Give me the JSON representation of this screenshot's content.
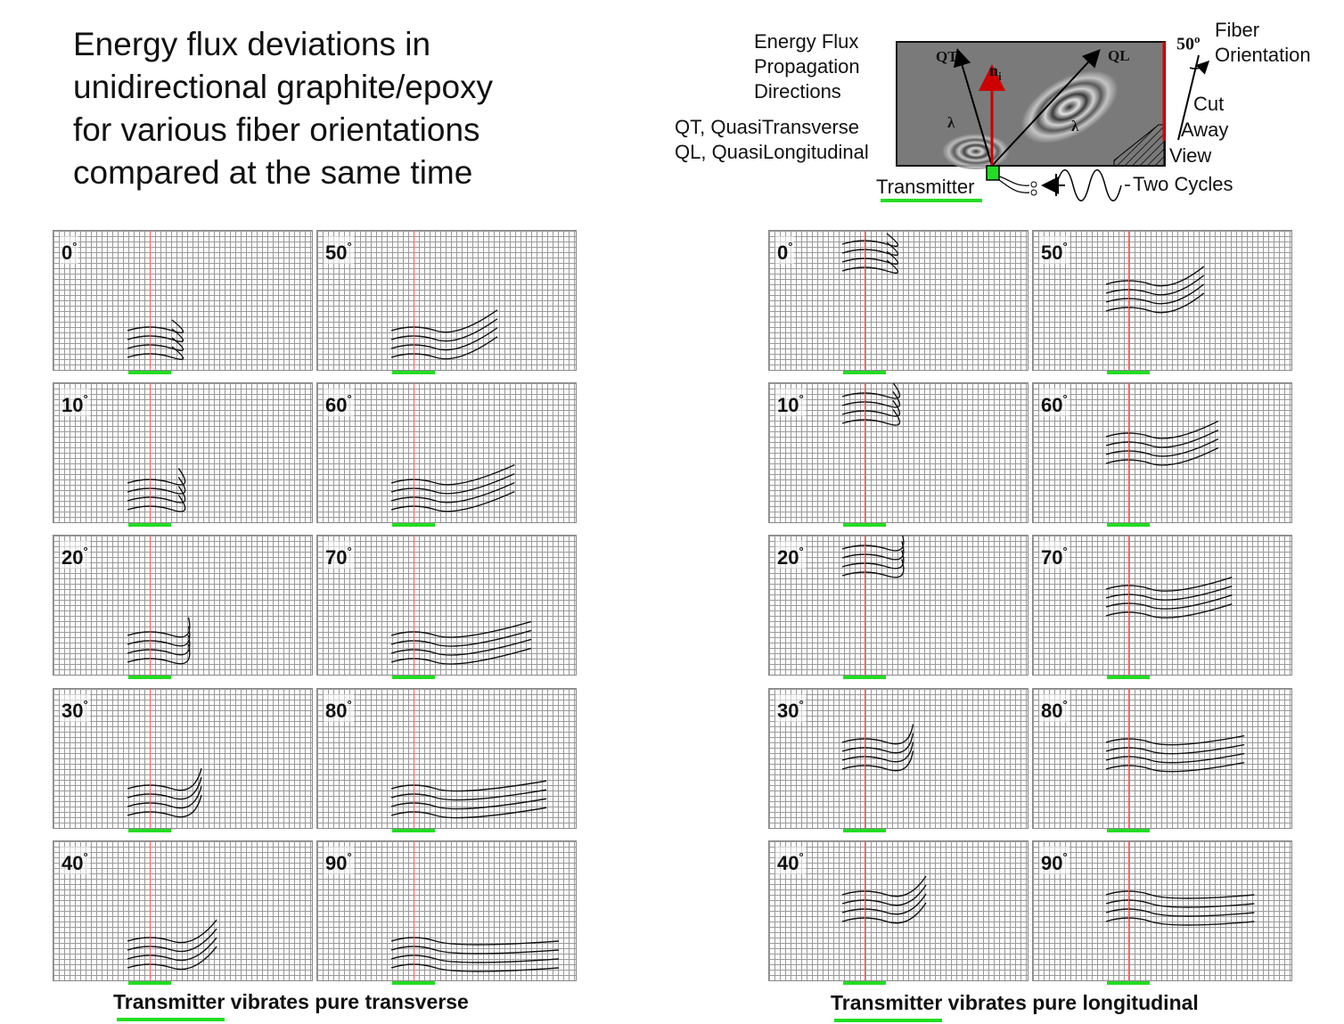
{
  "title": {
    "lines": [
      "Energy flux deviations in",
      "unidirectional graphite/epoxy",
      "for various fiber orientations",
      "compared at the same time"
    ]
  },
  "header_diagram": {
    "flux_label": [
      "Energy Flux",
      "Propagation",
      "Directions"
    ],
    "qt_def": "QT, QuasiTransverse",
    "ql_def": "QL, QuasiLongitudinal",
    "qt": "QT",
    "ql": "QL",
    "ni": "n",
    "ni_sub": "i",
    "lambda": "λ",
    "angle": "50",
    "angle_sup": "o",
    "fiber_orientation": [
      "Fiber",
      "Orientation"
    ],
    "cut_away": [
      "Cut",
      "Away",
      "View"
    ],
    "transmitter": "Transmitter",
    "two_cycles": "Two Cycles",
    "colors": {
      "transmitter": "#22dd22",
      "normal_arrow": "#cc0000",
      "fiber_line": "#dd0000"
    }
  },
  "left_group": {
    "caption_emph": "Transmitter",
    "caption_rest": " vibrates pure transverse",
    "panels": [
      {
        "angle": "0"
      },
      {
        "angle": "50"
      },
      {
        "angle": "10"
      },
      {
        "angle": "60"
      },
      {
        "angle": "20"
      },
      {
        "angle": "70"
      },
      {
        "angle": "30"
      },
      {
        "angle": "80"
      },
      {
        "angle": "40"
      },
      {
        "angle": "90"
      }
    ]
  },
  "right_group": {
    "caption_emph": "Transmitter",
    "caption_rest": " vibrates pure longitudinal",
    "panels": [
      {
        "angle": "0"
      },
      {
        "angle": "50"
      },
      {
        "angle": "10"
      },
      {
        "angle": "60"
      },
      {
        "angle": "20"
      },
      {
        "angle": "70"
      },
      {
        "angle": "30"
      },
      {
        "angle": "80"
      },
      {
        "angle": "40"
      },
      {
        "angle": "90"
      }
    ]
  },
  "degree_symbol": "°"
}
